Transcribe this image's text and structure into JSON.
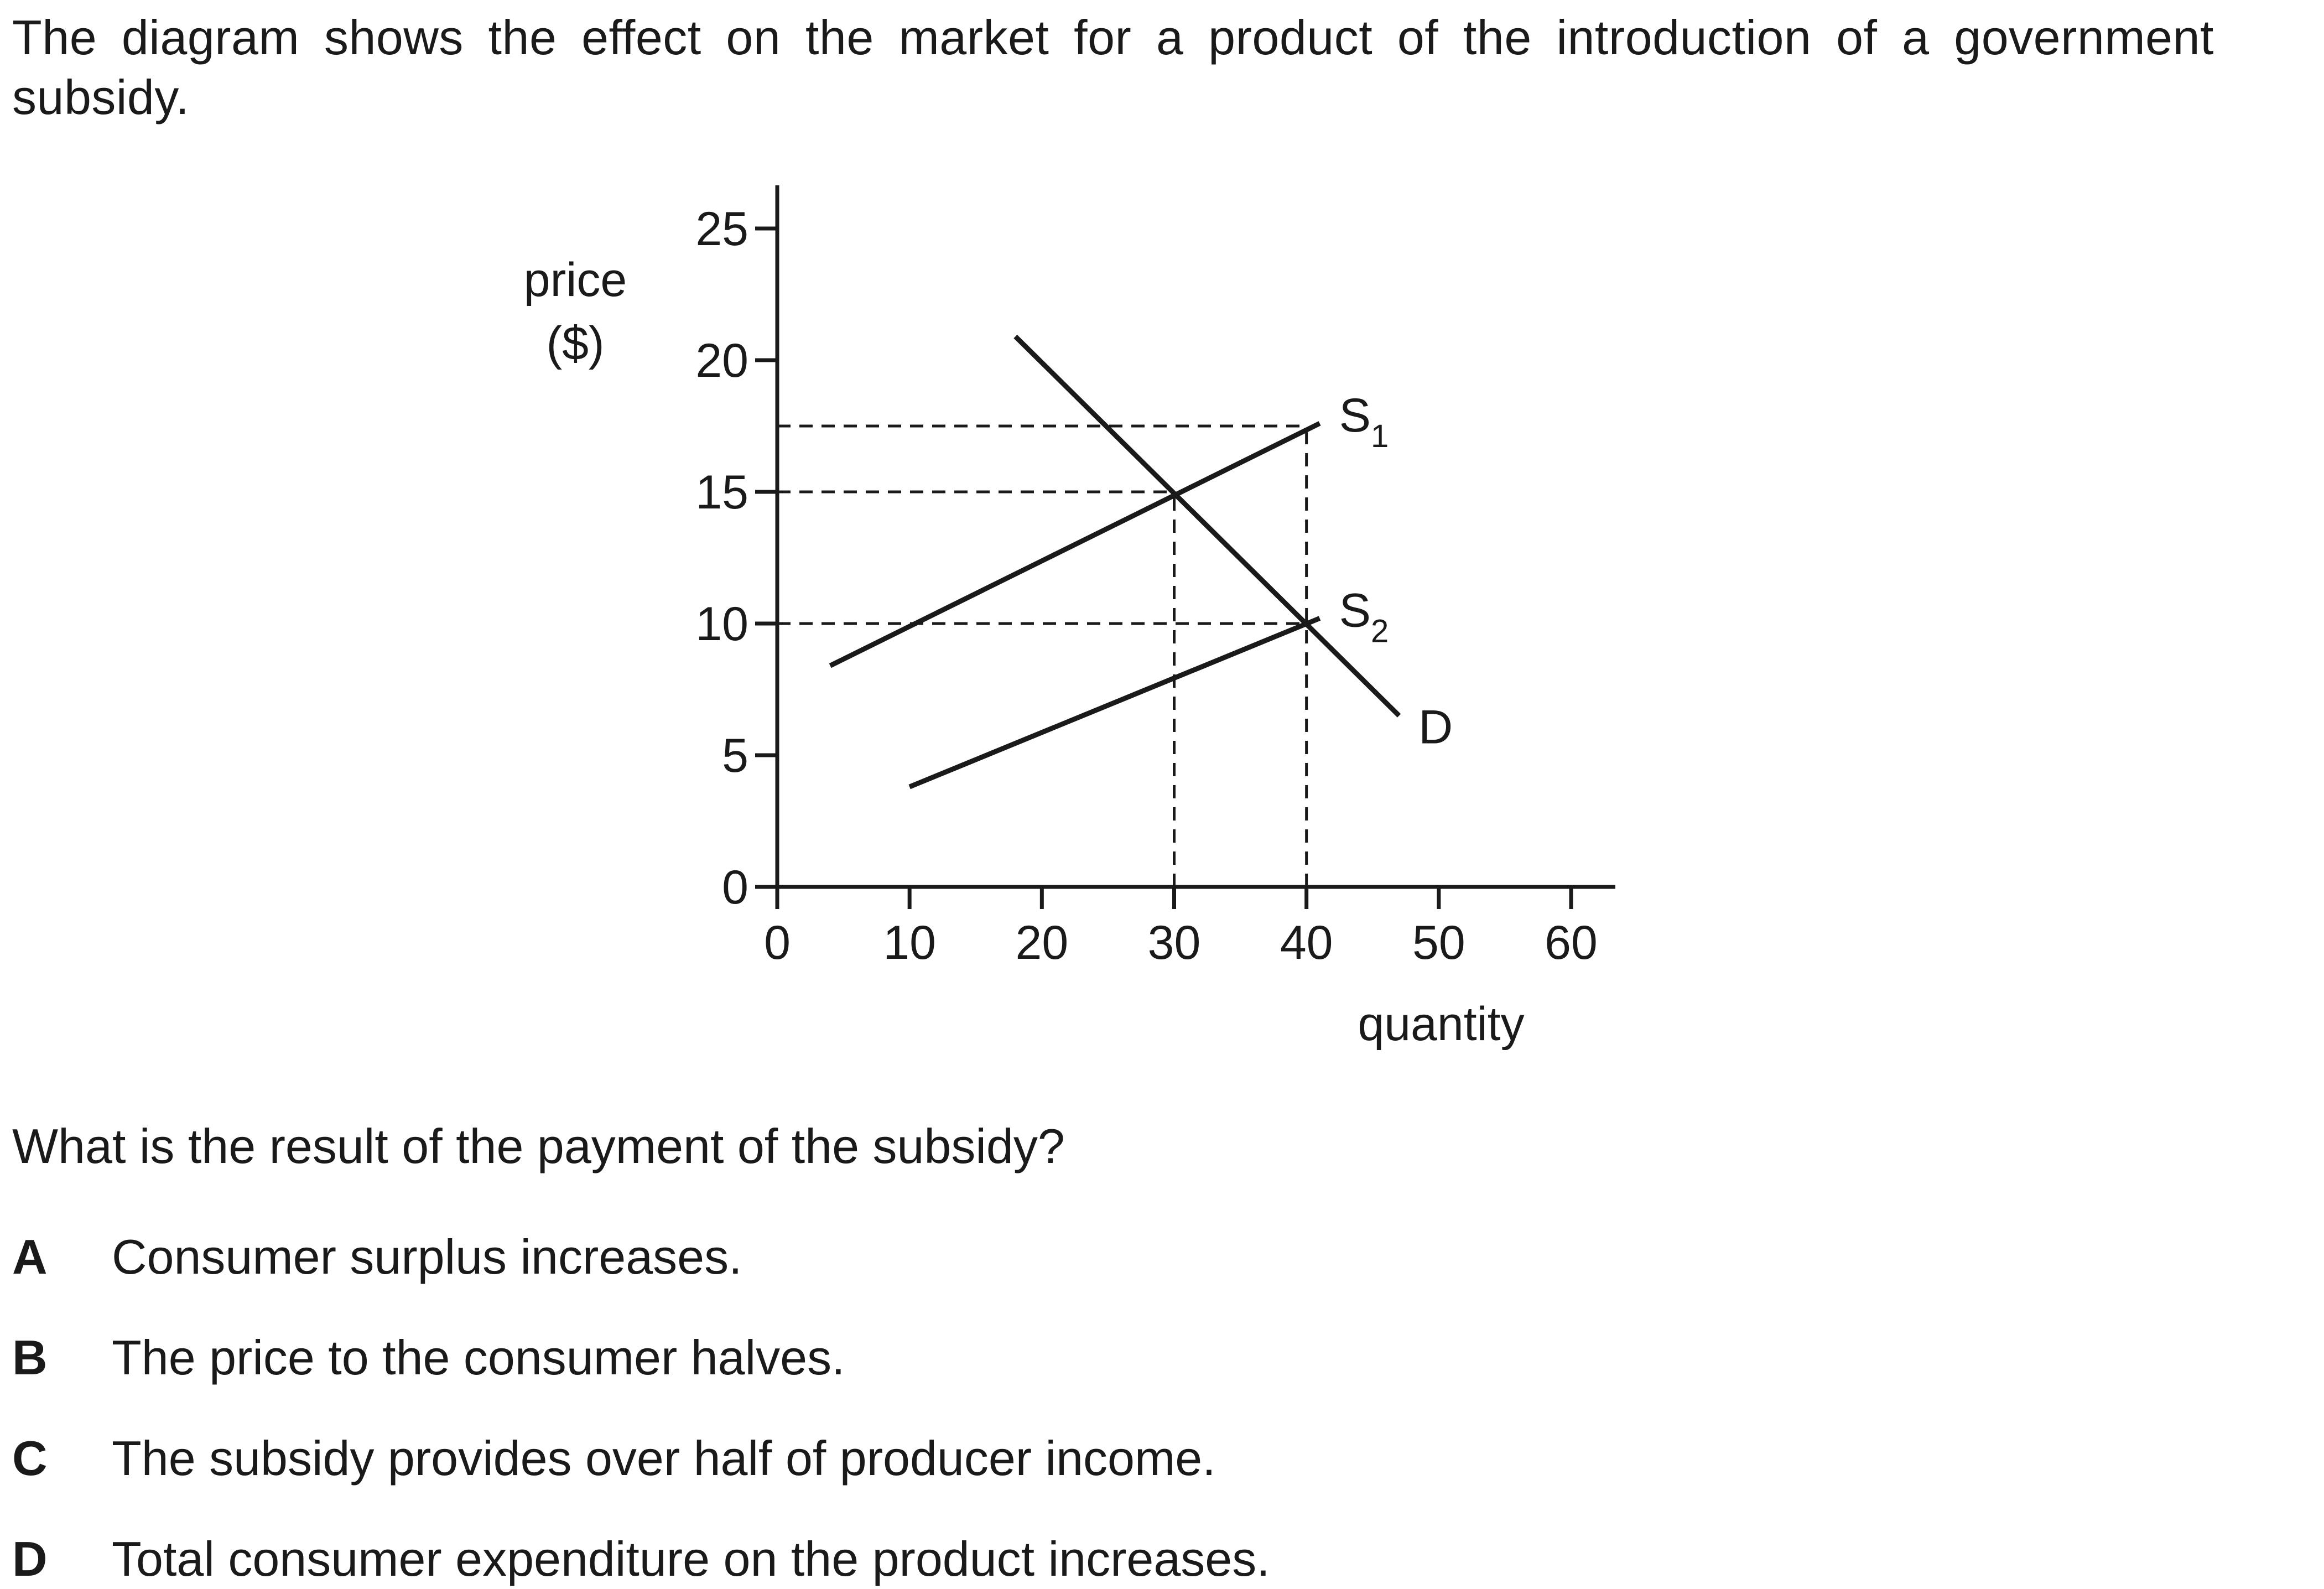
{
  "question": {
    "intro": "The diagram shows the effect on the market for a product of the introduction of a government subsidy.",
    "prompt": "What is the result of the payment of the subsidy?",
    "options": [
      {
        "letter": "A",
        "text": "Consumer surplus increases."
      },
      {
        "letter": "B",
        "text": "The price to the consumer halves."
      },
      {
        "letter": "C",
        "text": "The subsidy provides over half of producer income."
      },
      {
        "letter": "D",
        "text": "Total consumer expenditure on the product increases."
      }
    ]
  },
  "chart_data": {
    "type": "line",
    "ylabel_line1": "price",
    "ylabel_line2": "($)",
    "xlabel": "quantity",
    "xlim": [
      0,
      60
    ],
    "ylim": [
      0,
      25
    ],
    "xticks": [
      0,
      10,
      20,
      30,
      40,
      50,
      60
    ],
    "yticks": [
      0,
      5,
      10,
      15,
      20,
      25
    ],
    "grid": false,
    "series": [
      {
        "name": "S1",
        "label_main": "S",
        "label_sub": "1",
        "points": [
          [
            4,
            8.4
          ],
          [
            41,
            17.6
          ]
        ]
      },
      {
        "name": "S2",
        "label_main": "S",
        "label_sub": "2",
        "points": [
          [
            10,
            3.8
          ],
          [
            41,
            10.2
          ]
        ]
      },
      {
        "name": "D",
        "label_main": "D",
        "label_sub": "",
        "points": [
          [
            18,
            20.9
          ],
          [
            47,
            6.5
          ]
        ]
      }
    ],
    "reference_lines": {
      "horizontal": [
        {
          "y": 17.5,
          "x_to": 40
        },
        {
          "y": 15,
          "x_to": 30
        },
        {
          "y": 10,
          "x_to": 40
        }
      ],
      "vertical": [
        {
          "x": 30,
          "y_to": 15
        },
        {
          "x": 40,
          "y_to": 17.5
        }
      ]
    },
    "colors": {
      "line": "#1a1a1a"
    }
  }
}
